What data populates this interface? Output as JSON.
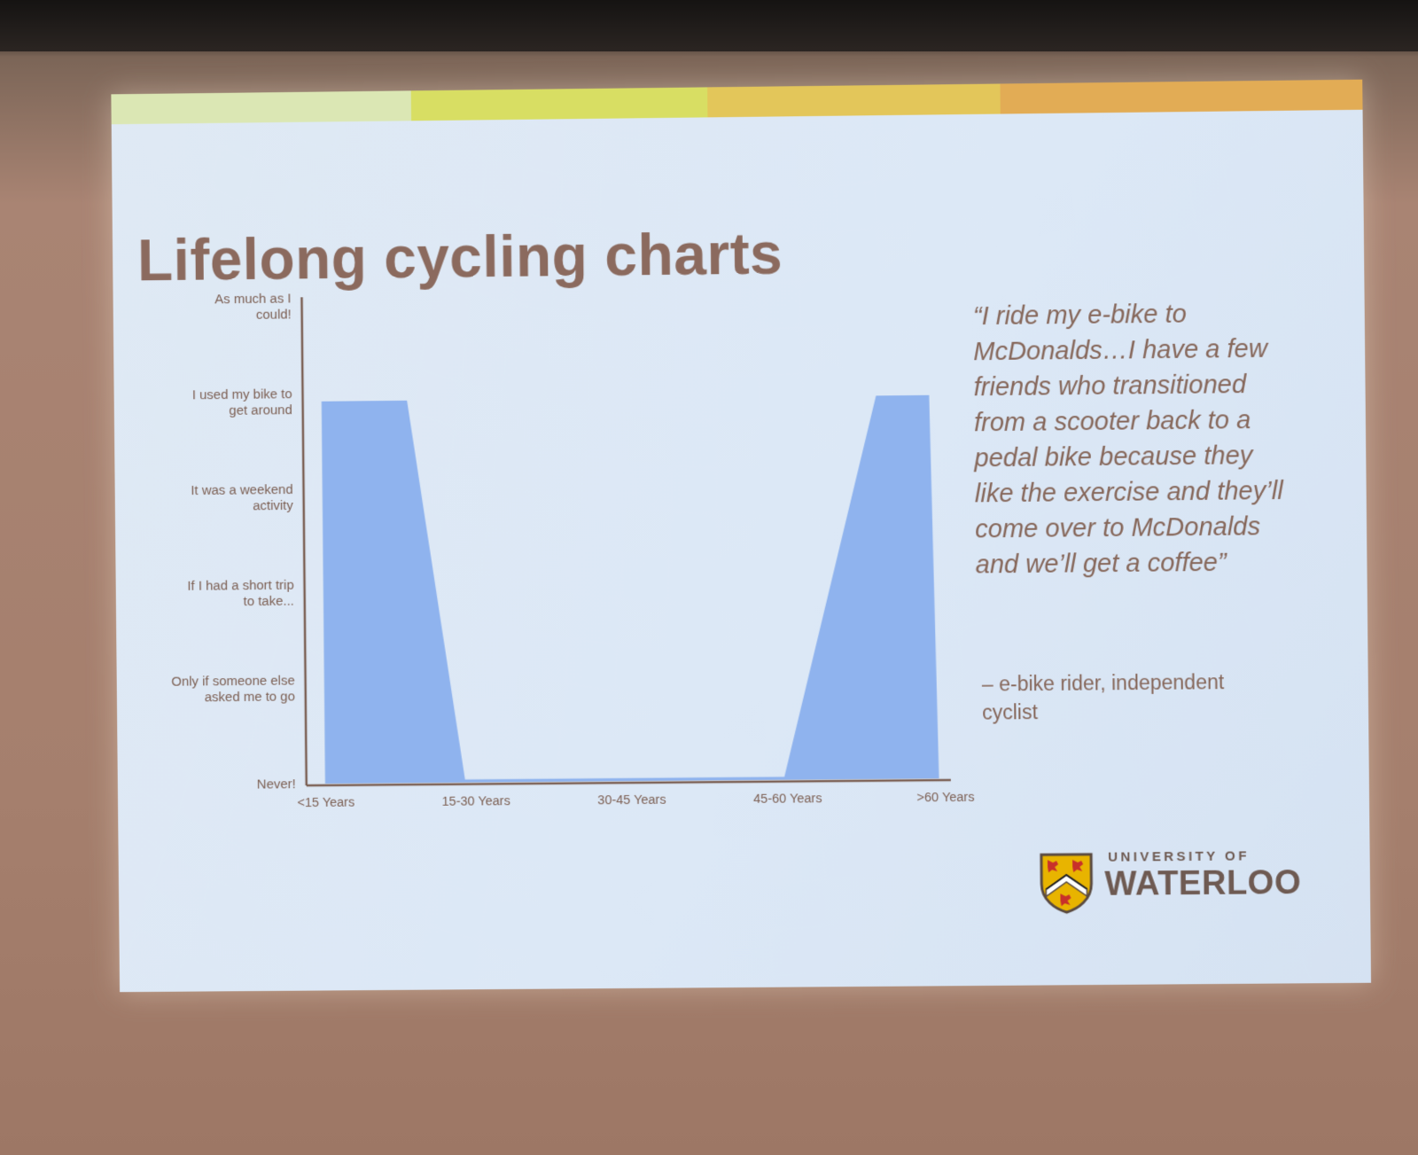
{
  "slide": {
    "title": "Lifelong cycling charts",
    "accent_colors": [
      "#dbe7b4",
      "#d8de63",
      "#e3c65a",
      "#e2ac55"
    ],
    "quote": "“I ride my e-bike to McDonalds…I have a few friends who transitioned from a scooter back to a pedal bike because they like the exercise and they’ll come over to McDonalds and we’ll get a coffee”",
    "attribution": "– e-bike rider, independent cyclist",
    "logo": {
      "top_text": "UNIVERSITY OF",
      "main_text": "WATERLOO",
      "crest_icon": "university-crest-icon"
    }
  },
  "chart_data": {
    "type": "area",
    "title": "",
    "xlabel": "",
    "ylabel": "",
    "x_tick_labels": [
      "<15 Years",
      "15-30 Years",
      "30-45 Years",
      "45-60 Years",
      ">60 Years"
    ],
    "y_levels": [
      "Never!",
      "Only if someone else asked me to go",
      "If I had a short trip to take...",
      "It was a weekend activity",
      "I used my bike to get around",
      "As much as I could!"
    ],
    "y_tick_labels": [
      [
        "Never!"
      ],
      [
        "Only if someone else",
        "asked me to go"
      ],
      [
        "If I had a short trip",
        "to take..."
      ],
      [
        "It was a weekend",
        "activity"
      ],
      [
        "I used my bike to",
        "get around"
      ],
      [
        "As much as I",
        "could!"
      ]
    ],
    "ylim": [
      0,
      5
    ],
    "xlim": [
      0,
      4
    ],
    "series": [
      {
        "color": "#8fb3ee",
        "x": [
          0.03,
          0.58,
          0.93,
          2.98,
          3.59,
          3.93,
          3.97
        ],
        "y": [
          4,
          4,
          0.03,
          0.03,
          4,
          4,
          0
        ]
      }
    ],
    "grid": false,
    "legend": "none"
  }
}
